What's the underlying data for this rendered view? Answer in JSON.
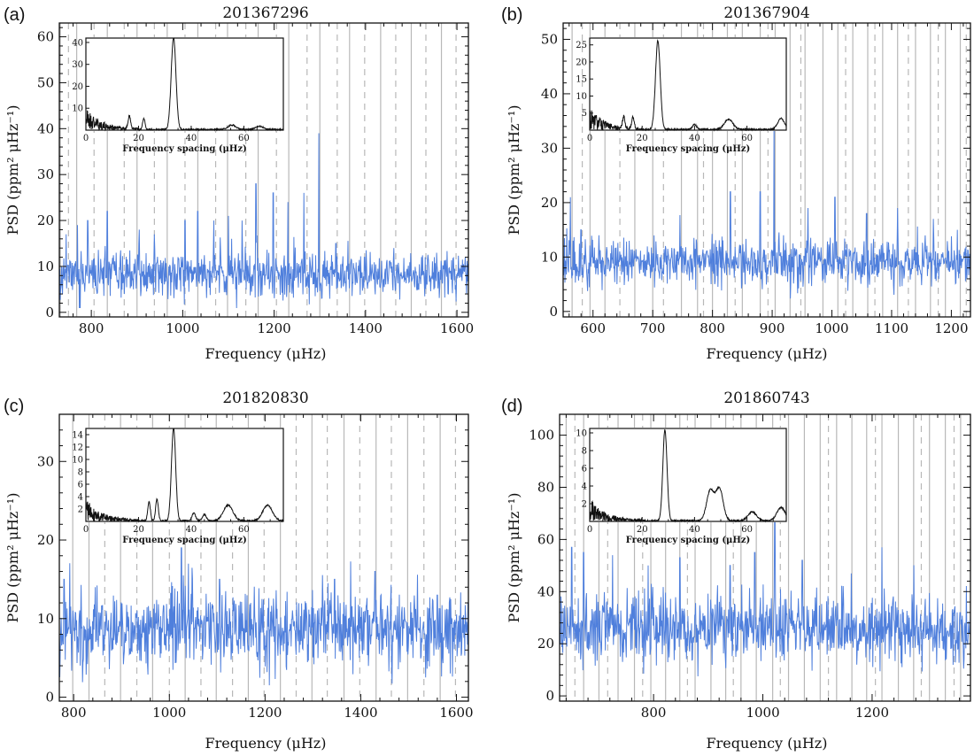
{
  "chart_data": [
    {
      "panel_label": "(a)",
      "type": "line",
      "title": "201367296",
      "xlabel": "Frequency (μHz)",
      "ylabel": "PSD (ppm² μHz⁻¹)",
      "xlim": [
        730,
        1625
      ],
      "ylim": [
        -1,
        63
      ],
      "xticks": [
        800,
        1000,
        1200,
        1400,
        1600
      ],
      "yticks": [
        0,
        10,
        20,
        30,
        40,
        50,
        60
      ],
      "series": [
        {
          "color": "#4f7fdc",
          "baseline": 8,
          "noise": 2.4,
          "seed": 11,
          "peaks": [
            [
              745,
              17
            ],
            [
              770,
              19
            ],
            [
              792,
              20
            ],
            [
              835,
              22
            ],
            [
              905,
              18
            ],
            [
              938,
              17
            ],
            [
              1005,
              20
            ],
            [
              1033,
              22
            ],
            [
              1068,
              20
            ],
            [
              1100,
              21
            ],
            [
              1130,
              20
            ],
            [
              1160,
              28
            ],
            [
              1198,
              26
            ],
            [
              1230,
              24
            ],
            [
              1265,
              26
            ],
            [
              1298,
              39
            ],
            [
              1335,
              15
            ],
            [
              1398,
              12
            ],
            [
              1462,
              14
            ]
          ]
        }
      ],
      "vlines_solid": [
        732,
        768,
        835,
        900,
        966,
        1033,
        1098,
        1165,
        1232,
        1300,
        1365,
        1433,
        1500,
        1566
      ],
      "vlines_dashed": [
        750,
        806,
        872,
        938,
        1005,
        1072,
        1138,
        1205,
        1272,
        1338,
        1398,
        1466,
        1532,
        1598
      ],
      "inset": {
        "xlabel": "Frequency spacing (μHz)",
        "xlim": [
          0,
          75
        ],
        "ylim": [
          0,
          42
        ],
        "xticks": [
          0,
          20,
          40,
          60
        ],
        "yticks": [
          10,
          20,
          30,
          40
        ],
        "seed": 21,
        "peaks": [
          [
            33.3,
            42,
            0.9
          ],
          [
            16.5,
            6,
            0.45
          ],
          [
            22,
            5,
            0.45
          ],
          [
            55.5,
            2,
            1.5
          ],
          [
            66,
            1.4,
            1.5
          ]
        ]
      }
    },
    {
      "panel_label": "(b)",
      "type": "line",
      "title": "201367904",
      "xlabel": "Frequency (μHz)",
      "ylabel": "PSD (ppm² μHz⁻¹)",
      "xlim": [
        550,
        1232
      ],
      "ylim": [
        -1,
        53
      ],
      "xticks": [
        600,
        700,
        800,
        900,
        1000,
        1100,
        1200
      ],
      "yticks": [
        0,
        10,
        20,
        30,
        40,
        50
      ],
      "series": [
        {
          "color": "#4f7fdc",
          "baseline": 9,
          "noise": 2.0,
          "seed": 22,
          "peaks": [
            [
              562,
              21
            ],
            [
              580,
              15
            ],
            [
              610,
              14
            ],
            [
              830,
              22
            ],
            [
              880,
              22
            ],
            [
              903,
              38
            ],
            [
              960,
              19
            ],
            [
              1005,
              21
            ],
            [
              1058,
              18
            ],
            [
              1110,
              19
            ],
            [
              1170,
              17
            ],
            [
              1210,
              15
            ]
          ]
        }
      ],
      "vlines_solid": [
        565,
        595,
        620,
        670,
        700,
        748,
        775,
        800,
        825,
        850,
        880,
        905,
        930,
        955,
        985,
        1010,
        1035,
        1060,
        1085,
        1110,
        1140,
        1165,
        1190,
        1215
      ],
      "vlines_dashed": [
        582,
        645,
        718,
        785,
        838,
        893,
        948,
        1023,
        1072,
        1128,
        1178,
        1225
      ],
      "inset": {
        "xlabel": "Frequency spacing (μHz)",
        "xlim": [
          0,
          75
        ],
        "ylim": [
          0,
          27
        ],
        "xticks": [
          0,
          20,
          40,
          60
        ],
        "yticks": [
          5,
          10,
          15,
          20,
          25
        ],
        "seed": 31,
        "peaks": [
          [
            26,
            26,
            0.9
          ],
          [
            13,
            3.5,
            0.45
          ],
          [
            16.5,
            3.5,
            0.45
          ],
          [
            53,
            3,
            1.6
          ],
          [
            40,
            1.5,
            0.8
          ],
          [
            73,
            3.2,
            1.3
          ]
        ]
      }
    },
    {
      "panel_label": "(c)",
      "type": "line",
      "title": "201820830",
      "xlabel": "Frequency (μHz)",
      "ylabel": "PSD (ppm² μHz⁻¹)",
      "xlim": [
        770,
        1625
      ],
      "ylim": [
        -0.5,
        36
      ],
      "xticks": [
        800,
        1000,
        1200,
        1400,
        1600
      ],
      "yticks": [
        0,
        10,
        20,
        30
      ],
      "series": [
        {
          "color": "#4f7fdc",
          "baseline": 8.5,
          "noise": 2.2,
          "seed": 33,
          "peaks": [
            [
              780,
              15
            ],
            [
              845,
              14
            ],
            [
              1025,
              19
            ],
            [
              1040,
              17
            ],
            [
              1105,
              15
            ],
            [
              1345,
              15
            ],
            [
              1430,
              16
            ],
            [
              1560,
              13
            ]
          ]
        }
      ],
      "vlines_solid": [
        798,
        832,
        898,
        965,
        1033,
        1098,
        1165,
        1232,
        1298,
        1365,
        1432,
        1498,
        1566
      ],
      "vlines_dashed": [
        865,
        932,
        1000,
        1066,
        1132,
        1198,
        1265,
        1330,
        1398,
        1464,
        1532,
        1598
      ],
      "inset": {
        "xlabel": "Frequency spacing (μHz)",
        "xlim": [
          0,
          75
        ],
        "ylim": [
          0,
          15
        ],
        "xticks": [
          0,
          20,
          40,
          60
        ],
        "yticks": [
          2,
          4,
          6,
          8,
          10,
          12,
          14
        ],
        "seed": 41,
        "peaks": [
          [
            33.3,
            15,
            0.8
          ],
          [
            24,
            3,
            0.5
          ],
          [
            27,
            3.5,
            0.5
          ],
          [
            54,
            2.5,
            1.8
          ],
          [
            69,
            2.5,
            1.8
          ],
          [
            41,
            1.2,
            0.7
          ],
          [
            45,
            1,
            0.7
          ]
        ]
      }
    },
    {
      "panel_label": "(d)",
      "type": "line",
      "title": "201860743",
      "xlabel": "Frequency (μHz)",
      "ylabel": "PSD (ppm² μHz⁻¹)",
      "xlim": [
        628,
        1380
      ],
      "ylim": [
        -2,
        108
      ],
      "xticks": [
        800,
        1000,
        1200
      ],
      "yticks": [
        0,
        20,
        40,
        60,
        80,
        100
      ],
      "series": [
        {
          "color": "#4f7fdc",
          "baseline": 25,
          "noise": 6.5,
          "seed": 44,
          "peaks": [
            [
              650,
              57
            ],
            [
              672,
              55
            ],
            [
              725,
              54
            ],
            [
              790,
              50
            ],
            [
              848,
              53
            ],
            [
              940,
              50
            ],
            [
              985,
              55
            ],
            [
              1022,
              70
            ],
            [
              1072,
              52
            ],
            [
              1162,
              47
            ],
            [
              1218,
              57
            ]
          ]
        }
      ],
      "vlines_solid": [
        640,
        672,
        700,
        735,
        765,
        795,
        822,
        848,
        876,
        905,
        932,
        960,
        988,
        1018,
        1047,
        1076,
        1105,
        1135,
        1163,
        1190,
        1218,
        1248,
        1276,
        1305,
        1334,
        1362
      ],
      "vlines_dashed": [
        656,
        716,
        780,
        862,
        946,
        1032,
        1120,
        1206,
        1290,
        1350
      ],
      "inset": {
        "xlabel": "Frequency spacing (μHz)",
        "xlim": [
          0,
          75
        ],
        "ylim": [
          0,
          10.5
        ],
        "xticks": [
          0,
          20,
          40,
          60
        ],
        "yticks": [
          2,
          4,
          6,
          8,
          10
        ],
        "seed": 51,
        "peaks": [
          [
            28.7,
            10.3,
            0.8
          ],
          [
            46,
            3.4,
            1.4
          ],
          [
            49.5,
            3.6,
            1.4
          ],
          [
            62,
            1,
            1.6
          ],
          [
            73,
            1.5,
            1.6
          ]
        ]
      }
    }
  ]
}
